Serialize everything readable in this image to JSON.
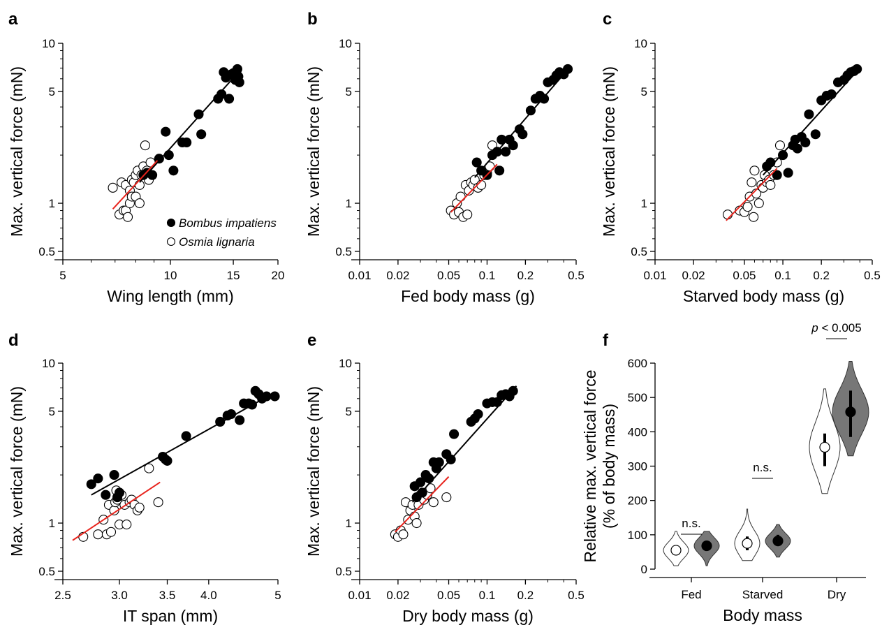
{
  "figure": {
    "panels": [
      "a",
      "b",
      "c",
      "d",
      "e",
      "f"
    ]
  },
  "chart_data": [
    {
      "panel": "a",
      "type": "scatter",
      "xlabel": "Wing length (mm)",
      "ylabel": "Max. vertical force (mN)",
      "xscale": "log",
      "yscale": "log",
      "xlim": [
        5,
        20
      ],
      "ylim": [
        0.5,
        10
      ],
      "xticks": [
        5,
        10,
        15,
        20
      ],
      "xtick_labels": [
        "5",
        "10",
        "15",
        "20"
      ],
      "yticks": [
        0.5,
        1,
        5,
        10
      ],
      "ytick_labels": [
        "0.5",
        "1",
        "5",
        "10"
      ],
      "legend": [
        {
          "name": "Bombus impatiens",
          "marker": "filled-circle"
        },
        {
          "name": "Osmia lignaria",
          "marker": "open-circle"
        }
      ],
      "legend_position": "bottom-right",
      "series": [
        {
          "name": "Bombus impatiens",
          "filled": true,
          "x": [
            8.4,
            8.6,
            8.9,
            9.3,
            9.7,
            9.9,
            10.2,
            10.8,
            11.1,
            12.0,
            12.2,
            13.6,
            13.9,
            14.1,
            14.3,
            14.6,
            14.8,
            15.0,
            15.2,
            15.3,
            15.4,
            15.5,
            15.6
          ],
          "y": [
            1.5,
            1.55,
            1.5,
            1.9,
            2.8,
            2.0,
            1.6,
            2.4,
            2.4,
            3.6,
            2.7,
            4.5,
            4.8,
            6.6,
            6.1,
            4.5,
            6.4,
            6.5,
            5.9,
            6.7,
            6.9,
            6.2,
            5.7
          ]
        },
        {
          "name": "Osmia lignaria",
          "filled": false,
          "x": [
            6.9,
            7.2,
            7.3,
            7.4,
            7.5,
            7.5,
            7.6,
            7.7,
            7.7,
            7.8,
            7.8,
            7.9,
            8.0,
            8.0,
            8.1,
            8.2,
            8.2,
            8.3,
            8.4,
            8.5,
            8.6,
            8.7,
            8.8
          ],
          "y": [
            1.25,
            0.85,
            1.35,
            0.9,
            0.9,
            1.3,
            0.82,
            1.0,
            1.2,
            1.1,
            1.4,
            1.35,
            1.5,
            1.1,
            1.6,
            1.0,
            1.3,
            1.5,
            1.7,
            2.3,
            1.6,
            1.4,
            1.8
          ]
        }
      ],
      "fits": [
        {
          "series": "Bombus impatiens",
          "color": "#000000",
          "x": [
            8.2,
            15.7
          ],
          "y": [
            1.35,
            6.8
          ]
        },
        {
          "series": "Osmia lignaria",
          "color": "#e8231c",
          "x": [
            6.9,
            9.2
          ],
          "y": [
            0.92,
            1.85
          ]
        }
      ]
    },
    {
      "panel": "b",
      "type": "scatter",
      "xlabel": "Fed body mass (g)",
      "ylabel": "Max. vertical force (mN)",
      "xscale": "log",
      "yscale": "log",
      "xlim": [
        0.01,
        0.5
      ],
      "ylim": [
        0.5,
        10
      ],
      "xticks": [
        0.01,
        0.02,
        0.05,
        0.1,
        0.2,
        0.5
      ],
      "xtick_labels": [
        "0.01",
        "0.02",
        "0.05",
        "0.1",
        "0.2",
        "0.5"
      ],
      "yticks": [
        0.5,
        1,
        5,
        10
      ],
      "ytick_labels": [
        "0.5",
        "1",
        "5",
        "10"
      ],
      "series": [
        {
          "name": "Bombus impatiens",
          "filled": true,
          "x": [
            0.083,
            0.09,
            0.1,
            0.11,
            0.12,
            0.125,
            0.13,
            0.14,
            0.15,
            0.16,
            0.18,
            0.19,
            0.22,
            0.24,
            0.26,
            0.28,
            0.3,
            0.33,
            0.35,
            0.37,
            0.4,
            0.43
          ],
          "y": [
            1.8,
            1.6,
            1.5,
            2.0,
            2.1,
            1.6,
            2.5,
            2.1,
            2.5,
            2.3,
            2.9,
            2.7,
            3.8,
            4.5,
            4.7,
            4.5,
            5.7,
            5.9,
            6.3,
            6.6,
            6.4,
            6.9
          ]
        },
        {
          "name": "Osmia lignaria",
          "filled": false,
          "x": [
            0.052,
            0.055,
            0.058,
            0.06,
            0.062,
            0.065,
            0.068,
            0.07,
            0.072,
            0.075,
            0.078,
            0.08,
            0.085,
            0.09,
            0.095,
            0.1,
            0.105,
            0.11
          ],
          "y": [
            0.9,
            0.85,
            1.0,
            0.88,
            1.1,
            0.82,
            1.3,
            0.85,
            1.2,
            1.35,
            1.3,
            1.4,
            1.25,
            1.3,
            1.5,
            1.55,
            1.7,
            2.3
          ]
        }
      ],
      "fits": [
        {
          "series": "Bombus impatiens",
          "color": "#000000",
          "x": [
            0.08,
            0.44
          ],
          "y": [
            1.45,
            7.0
          ]
        },
        {
          "series": "Osmia lignaria",
          "color": "#e8231c",
          "x": [
            0.052,
            0.12
          ],
          "y": [
            0.88,
            1.75
          ]
        }
      ]
    },
    {
      "panel": "c",
      "type": "scatter",
      "xlabel": "Starved body mass (g)",
      "ylabel": "Max. vertical force (mN)",
      "xscale": "log",
      "yscale": "log",
      "xlim": [
        0.01,
        0.5
      ],
      "ylim": [
        0.5,
        10
      ],
      "xticks": [
        0.01,
        0.02,
        0.05,
        0.1,
        0.2,
        0.5
      ],
      "xtick_labels": [
        "0.01",
        "0.02",
        "0.05",
        "0.1",
        "0.2",
        "0.5"
      ],
      "yticks": [
        0.5,
        1,
        5,
        10
      ],
      "ytick_labels": [
        "0.5",
        "1",
        "5",
        "10"
      ],
      "series": [
        {
          "name": "Bombus impatiens",
          "filled": true,
          "x": [
            0.075,
            0.08,
            0.09,
            0.1,
            0.11,
            0.12,
            0.125,
            0.13,
            0.14,
            0.15,
            0.16,
            0.18,
            0.2,
            0.22,
            0.24,
            0.27,
            0.3,
            0.32,
            0.34,
            0.36,
            0.38
          ],
          "y": [
            1.7,
            1.8,
            1.5,
            2.0,
            1.55,
            2.3,
            2.5,
            2.2,
            2.6,
            2.4,
            3.6,
            2.7,
            4.4,
            4.7,
            4.8,
            5.7,
            5.9,
            6.3,
            6.6,
            6.7,
            6.9
          ]
        },
        {
          "name": "Osmia lignaria",
          "filled": false,
          "x": [
            0.037,
            0.046,
            0.05,
            0.053,
            0.055,
            0.057,
            0.059,
            0.06,
            0.062,
            0.065,
            0.068,
            0.07,
            0.072,
            0.075,
            0.078,
            0.08,
            0.085,
            0.09,
            0.095
          ],
          "y": [
            0.85,
            0.9,
            0.88,
            0.95,
            1.1,
            1.35,
            0.82,
            1.6,
            1.15,
            1.0,
            1.3,
            1.25,
            1.5,
            1.35,
            1.4,
            1.3,
            1.5,
            1.8,
            2.3
          ]
        }
      ],
      "fits": [
        {
          "series": "Bombus impatiens",
          "color": "#000000",
          "x": [
            0.07,
            0.4
          ],
          "y": [
            1.5,
            7.0
          ]
        },
        {
          "series": "Osmia lignaria",
          "color": "#e8231c",
          "x": [
            0.036,
            0.09
          ],
          "y": [
            0.78,
            1.65
          ]
        }
      ]
    },
    {
      "panel": "d",
      "type": "scatter",
      "xlabel": "IT span (mm)",
      "ylabel": "Max. vertical force (mN)",
      "xscale": "log",
      "yscale": "log",
      "xlim": [
        2.5,
        5
      ],
      "ylim": [
        0.5,
        10
      ],
      "xticks": [
        2.5,
        3.0,
        3.5,
        4.0,
        5
      ],
      "xtick_labels": [
        "2.5",
        "3.0",
        "3.5",
        "4.0",
        "5"
      ],
      "yticks": [
        0.5,
        1,
        5,
        10
      ],
      "ytick_labels": [
        "0.5",
        "1",
        "5",
        "10"
      ],
      "series": [
        {
          "name": "Bombus impatiens",
          "filled": true,
          "x": [
            2.74,
            2.8,
            2.87,
            2.95,
            2.98,
            3.0,
            3.45,
            3.48,
            3.5,
            3.72,
            4.15,
            4.25,
            4.3,
            4.42,
            4.48,
            4.55,
            4.6,
            4.65,
            4.7,
            4.75,
            4.82,
            4.95
          ],
          "y": [
            1.75,
            1.9,
            1.5,
            2.0,
            1.45,
            1.55,
            2.6,
            2.5,
            2.45,
            3.5,
            4.3,
            4.7,
            4.8,
            4.4,
            5.6,
            5.6,
            5.5,
            6.7,
            6.4,
            6.0,
            6.2,
            6.2
          ]
        },
        {
          "name": "Osmia lignaria",
          "filled": false,
          "x": [
            2.67,
            2.8,
            2.85,
            2.88,
            2.9,
            2.92,
            2.95,
            2.96,
            2.97,
            2.98,
            3.0,
            3.02,
            3.05,
            3.07,
            3.1,
            3.12,
            3.15,
            3.18,
            3.2,
            3.3,
            3.4
          ],
          "y": [
            0.82,
            0.85,
            1.05,
            0.85,
            1.3,
            0.88,
            1.2,
            1.35,
            1.6,
            1.4,
            0.98,
            1.5,
            1.3,
            0.98,
            1.35,
            1.4,
            1.3,
            1.2,
            1.25,
            2.2,
            1.35
          ]
        }
      ],
      "fits": [
        {
          "series": "Bombus impatiens",
          "color": "#000000",
          "x": [
            2.74,
            4.93
          ],
          "y": [
            1.5,
            6.5
          ]
        },
        {
          "series": "Osmia lignaria",
          "color": "#e8231c",
          "x": [
            2.58,
            3.42
          ],
          "y": [
            0.78,
            1.8
          ]
        }
      ]
    },
    {
      "panel": "e",
      "type": "scatter",
      "xlabel": "Dry body mass (g)",
      "ylabel": "Max. vertical force (mN)",
      "xscale": "log",
      "yscale": "log",
      "xlim": [
        0.01,
        0.5
      ],
      "ylim": [
        0.5,
        10
      ],
      "xticks": [
        0.01,
        0.02,
        0.05,
        0.1,
        0.2,
        0.5
      ],
      "xtick_labels": [
        "0.01",
        "0.02",
        "0.05",
        "0.1",
        "0.2",
        "0.5"
      ],
      "yticks": [
        0.5,
        1,
        5,
        10
      ],
      "ytick_labels": [
        "0.5",
        "1",
        "5",
        "10"
      ],
      "series": [
        {
          "name": "Bombus impatiens",
          "filled": true,
          "x": [
            0.027,
            0.028,
            0.03,
            0.031,
            0.033,
            0.035,
            0.038,
            0.04,
            0.042,
            0.048,
            0.052,
            0.055,
            0.075,
            0.08,
            0.085,
            0.1,
            0.11,
            0.12,
            0.13,
            0.14,
            0.15,
            0.16
          ],
          "y": [
            1.7,
            1.45,
            1.8,
            1.55,
            2.0,
            1.9,
            2.4,
            2.2,
            2.4,
            2.7,
            2.5,
            3.6,
            4.3,
            4.5,
            4.8,
            5.6,
            5.7,
            5.7,
            6.3,
            6.4,
            6.2,
            6.7
          ]
        },
        {
          "name": "Osmia lignaria",
          "filled": false,
          "x": [
            0.019,
            0.02,
            0.021,
            0.022,
            0.023,
            0.024,
            0.025,
            0.026,
            0.027,
            0.028,
            0.029,
            0.03,
            0.032,
            0.034,
            0.036,
            0.038,
            0.048
          ],
          "y": [
            0.85,
            0.82,
            0.9,
            0.85,
            1.35,
            1.05,
            1.2,
            1.3,
            1.1,
            1.0,
            1.3,
            1.5,
            1.4,
            1.5,
            1.65,
            1.35,
            1.45
          ]
        }
      ],
      "fits": [
        {
          "series": "Bombus impatiens",
          "color": "#000000",
          "x": [
            0.026,
            0.17
          ],
          "y": [
            1.35,
            7.2
          ]
        },
        {
          "series": "Osmia lignaria",
          "color": "#e8231c",
          "x": [
            0.019,
            0.05
          ],
          "y": [
            0.88,
            1.95
          ]
        }
      ]
    },
    {
      "panel": "f",
      "type": "violin",
      "xlabel": "Body mass",
      "ylabel": "Relative max. vertical force\n(% of body mass)",
      "ylim": [
        0,
        600
      ],
      "yticks": [
        0,
        100,
        200,
        300,
        400,
        500,
        600
      ],
      "ytick_labels": [
        "0",
        "100",
        "200",
        "300",
        "400",
        "500",
        "600"
      ],
      "categories": [
        "Fed",
        "Starved",
        "Dry"
      ],
      "series": [
        {
          "name": "Osmia lignaria",
          "filled": false,
          "median": [
            55,
            75,
            355
          ],
          "q1": [
            40,
            55,
            300
          ],
          "q3": [
            70,
            95,
            395
          ],
          "min": [
            10,
            25,
            220
          ],
          "max": [
            110,
            175,
            525
          ]
        },
        {
          "name": "Bombus impatiens",
          "filled": true,
          "median": [
            68,
            82,
            458
          ],
          "q1": [
            55,
            68,
            385
          ],
          "q3": [
            80,
            100,
            520
          ],
          "min": [
            10,
            35,
            330
          ],
          "max": [
            110,
            130,
            605
          ]
        }
      ],
      "annotations": [
        {
          "category": "Fed",
          "text": "n.s."
        },
        {
          "category": "Starved",
          "text": "n.s."
        },
        {
          "category": "Dry",
          "text_italic": "p",
          "text": " < 0.005"
        }
      ]
    }
  ]
}
